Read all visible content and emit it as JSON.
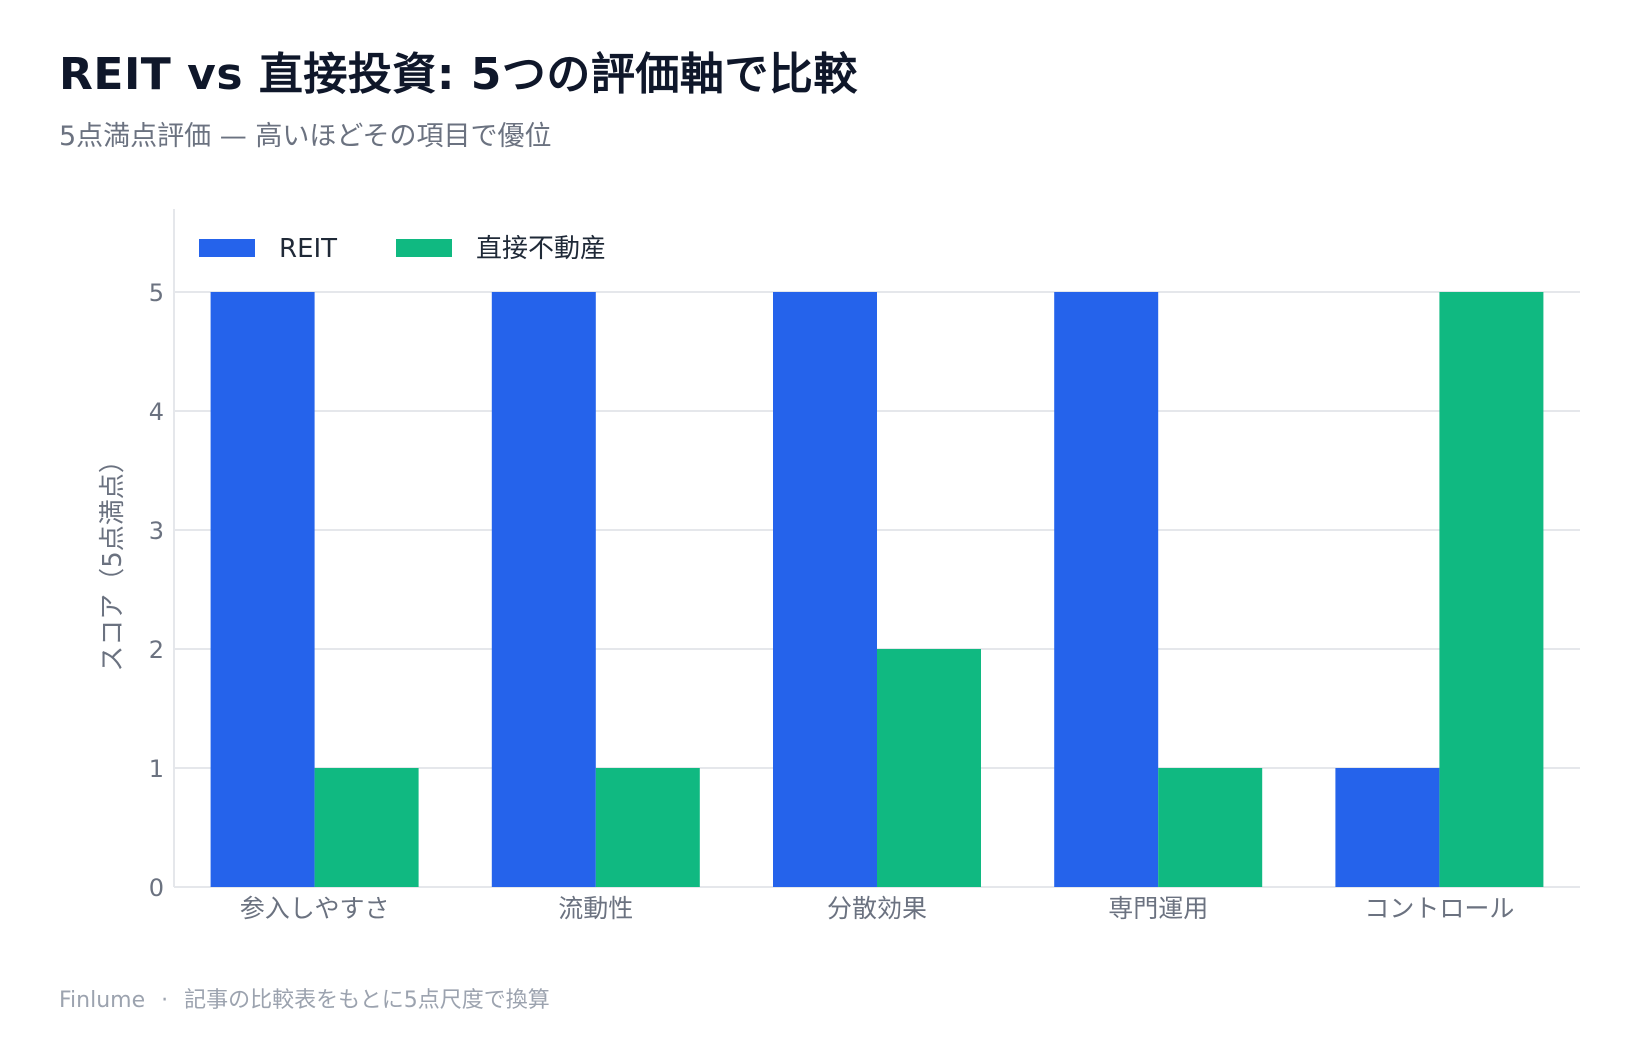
{
  "header": {
    "title": "REIT vs 直接投資: 5つの評価軸で比較",
    "subtitle": "5点満点評価 — 高いほどその項目で優位"
  },
  "footer": {
    "source": "Finlume",
    "separator": "·",
    "note": "記事の比較表をもとに5点尺度で換算"
  },
  "chart_data": {
    "type": "bar",
    "categories": [
      "参入しやすさ",
      "流動性",
      "分散効果",
      "専門運用",
      "コントロール"
    ],
    "series": [
      {
        "name": "REIT",
        "values": [
          5,
          5,
          5,
          5,
          1
        ],
        "color": "#2563eb"
      },
      {
        "name": "直接不動産",
        "values": [
          1,
          1,
          2,
          1,
          5
        ],
        "color": "#10b981"
      }
    ],
    "ylabel": "スコア（5点満点）",
    "xlabel": "",
    "ylim": [
      0,
      5
    ],
    "yticks": [
      0,
      1,
      2,
      3,
      4,
      5
    ],
    "grid": true,
    "legend": "top-left"
  }
}
